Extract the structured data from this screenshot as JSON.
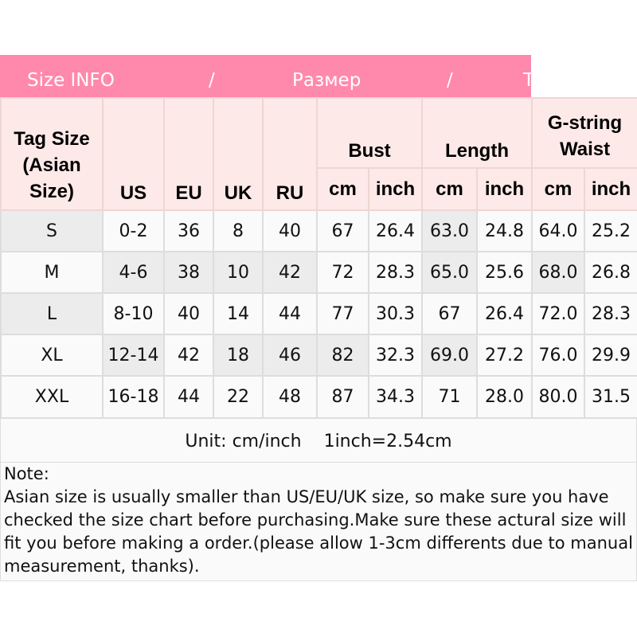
{
  "banner": {
    "part1": "Size INFO",
    "sep1": "/",
    "part2": "Размер",
    "sep2": "/",
    "part3": "T"
  },
  "headers": {
    "tag_size": "Tag Size (Asian Size)",
    "us": "US",
    "eu": "EU",
    "uk": "UK",
    "ru": "RU",
    "bust": "Bust",
    "length": "Length",
    "waist": "G-string Waist",
    "cm": "cm",
    "inch": "inch"
  },
  "rows": [
    [
      "S",
      "0-2",
      "36",
      "8",
      "40",
      "67",
      "26.4",
      "63.0",
      "24.8",
      "64.0",
      "25.2"
    ],
    [
      "M",
      "4-6",
      "38",
      "10",
      "42",
      "72",
      "28.3",
      "65.0",
      "25.6",
      "68.0",
      "26.8"
    ],
    [
      "L",
      "8-10",
      "40",
      "14",
      "44",
      "77",
      "30.3",
      "67",
      "26.4",
      "72.0",
      "28.3"
    ],
    [
      "XL",
      "12-14",
      "42",
      "18",
      "46",
      "82",
      "32.3",
      "69.0",
      "27.2",
      "76.0",
      "29.9"
    ],
    [
      "XXL",
      "16-18",
      "44",
      "22",
      "48",
      "87",
      "34.3",
      "71",
      "28.0",
      "80.0",
      "31.5"
    ]
  ],
  "unit": "Unit: cm/inch    1inch=2.54cm",
  "note": {
    "title": "Note:",
    "body": "Asian size is usually smaller than US/EU/UK size, so make sure you have checked the size chart before purchasing.Make sure these actural size will fit you before making a order.(please allow 1-3cm differents due to manual measurement, thanks)."
  }
}
